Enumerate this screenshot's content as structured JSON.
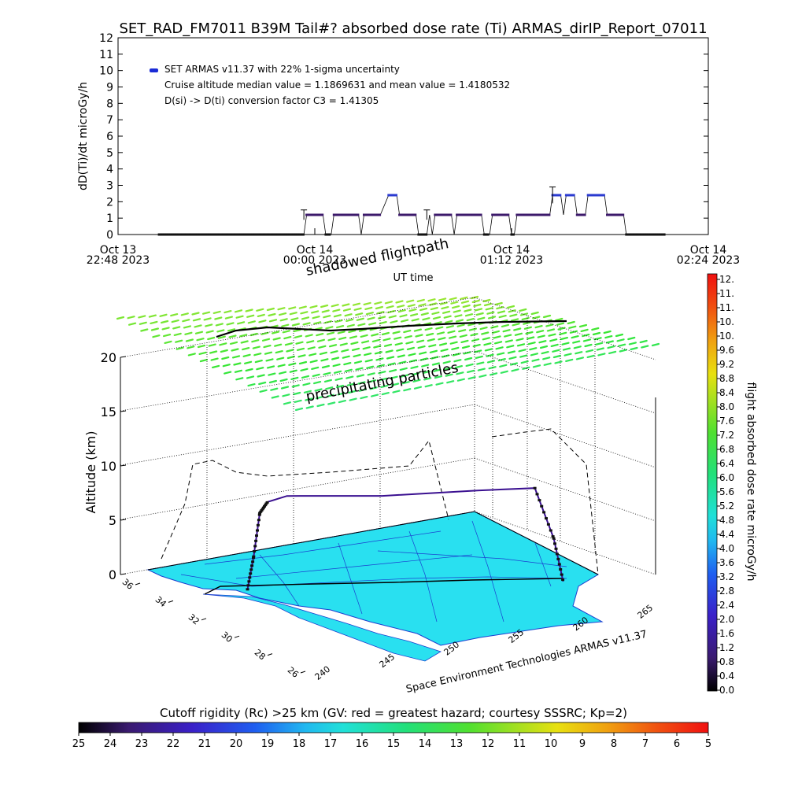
{
  "title": "SET_RAD_FM7011  B39M Tail#? absorbed dose rate (Ti) ARMAS_dirIP_Report_07011",
  "chart_data": [
    {
      "type": "line",
      "ylabel": "dD(Ti)/dt microGy/h",
      "xlabel": "UT time",
      "ylim": [
        0,
        12
      ],
      "yticks": [
        "0",
        "1",
        "2",
        "3",
        "4",
        "5",
        "6",
        "7",
        "8",
        "9",
        "10",
        "11",
        "12"
      ],
      "xticks": [
        {
          "line1": "Oct 13",
          "line2": "22:48 2023",
          "t": 0
        },
        {
          "line1": "Oct 14",
          "line2": "00:00 2023",
          "t": 72
        },
        {
          "line1": "Oct 14",
          "line2": "01:12 2023",
          "t": 144
        },
        {
          "line1": "Oct 14",
          "line2": "02:24 2023",
          "t": 216
        }
      ],
      "x_unit": "minutes after Oct 13 22:48 2023",
      "legend": {
        "placement": "top-left",
        "series_label": "SET ARMAS v11.37 with 22% 1-sigma uncertainty",
        "note1": "Cruise altitude median value = 1.1869631 and mean value = 1.4180532",
        "note2": "D(si) -> D(ti) conversion factor C3 = 1.41305"
      },
      "series": [
        {
          "points": [
            [
              15,
              0
            ],
            [
              20,
              0
            ],
            [
              25,
              0
            ],
            [
              30,
              0
            ],
            [
              35,
              0
            ],
            [
              40,
              0
            ],
            [
              45,
              0
            ],
            [
              50,
              0
            ],
            [
              55,
              0
            ],
            [
              60,
              0
            ],
            [
              65,
              0
            ],
            [
              68,
              0
            ],
            [
              69,
              1.2
            ],
            [
              72,
              1.2
            ],
            [
              75,
              1.2
            ],
            [
              76,
              0
            ],
            [
              78,
              0
            ],
            [
              79,
              1.2
            ],
            [
              82,
              1.2
            ],
            [
              85,
              1.2
            ],
            [
              88,
              1.2
            ],
            [
              89,
              0
            ],
            [
              90,
              1.2
            ],
            [
              93,
              1.2
            ],
            [
              96,
              1.2
            ],
            [
              99,
              2.4
            ],
            [
              102,
              2.4
            ],
            [
              103,
              1.2
            ],
            [
              106,
              1.2
            ],
            [
              109,
              1.2
            ],
            [
              110,
              0
            ],
            [
              113,
              0
            ],
            [
              114,
              1.2
            ],
            [
              115,
              0
            ],
            [
              116,
              1.2
            ],
            [
              119,
              1.2
            ],
            [
              122,
              1.2
            ],
            [
              123,
              0
            ],
            [
              124,
              1.2
            ],
            [
              127,
              1.2
            ],
            [
              130,
              1.2
            ],
            [
              133,
              1.2
            ],
            [
              134,
              0
            ],
            [
              136,
              0
            ],
            [
              137,
              1.2
            ],
            [
              140,
              1.2
            ],
            [
              143,
              1.2
            ],
            [
              144,
              0
            ],
            [
              145,
              0
            ],
            [
              146,
              1.2
            ],
            [
              149,
              1.2
            ],
            [
              152,
              1.2
            ],
            [
              155,
              1.2
            ],
            [
              158,
              1.2
            ],
            [
              159,
              2.4
            ],
            [
              162,
              2.4
            ],
            [
              163,
              1.2
            ],
            [
              164,
              2.4
            ],
            [
              167,
              2.4
            ],
            [
              168,
              1.2
            ],
            [
              171,
              1.2
            ],
            [
              172,
              2.4
            ],
            [
              175,
              2.4
            ],
            [
              178,
              2.4
            ],
            [
              179,
              1.2
            ],
            [
              182,
              1.2
            ],
            [
              185,
              1.2
            ],
            [
              186,
              0
            ],
            [
              190,
              0
            ],
            [
              195,
              0
            ],
            [
              200,
              0
            ]
          ],
          "errorbars": [
            [
              68,
              1.2,
              0.3
            ],
            [
              113,
              1.2,
              0.3
            ],
            [
              159,
              2.4,
              0.5
            ]
          ]
        }
      ]
    },
    {
      "type": "scatter",
      "chart_kind": "3d flight path over map",
      "zlabel": "Altitude (km)",
      "zticks": [
        "0",
        "5",
        "10",
        "15",
        "20"
      ],
      "zlim": [
        0,
        20
      ],
      "lat_ticks": [
        "36",
        "34",
        "32",
        "30",
        "28",
        "26"
      ],
      "lon_ticks": [
        "240",
        "245",
        "250",
        "255",
        "260",
        "265"
      ],
      "annotation_shadow": "shadowed flightpath",
      "annotation_precip": "precipitating particles",
      "credit": "Space Environment Technologies ARMAS v11.37",
      "path": [
        {
          "lon": 248,
          "lat": 33.5,
          "alt_km": 0
        },
        {
          "lon": 248.3,
          "lat": 33.7,
          "alt_km": 3
        },
        {
          "lon": 248.6,
          "lat": 33.9,
          "alt_km": 7
        },
        {
          "lon": 249,
          "lat": 34,
          "alt_km": 8
        },
        {
          "lon": 250,
          "lat": 34.2,
          "alt_km": 8.5
        },
        {
          "lon": 255,
          "lat": 34.6,
          "alt_km": 8.3
        },
        {
          "lon": 260,
          "lat": 35,
          "alt_km": 8.6
        },
        {
          "lon": 263,
          "lat": 35.2,
          "alt_km": 8.7
        },
        {
          "lon": 264,
          "lat": 35.2,
          "alt_km": 4
        },
        {
          "lon": 264.5,
          "lat": 35.2,
          "alt_km": 0
        }
      ],
      "precip_layer_alt_km": 22
    }
  ],
  "colorbar_right": {
    "label": "flight absorbed dose rate microGy/h",
    "ticks": [
      "12.",
      "11.",
      "11.",
      "10.",
      "10.",
      "9.6",
      "9.2",
      "8.8",
      "8.4",
      "8.0",
      "7.6",
      "7.2",
      "6.8",
      "6.4",
      "6.0",
      "5.6",
      "5.2",
      "4.8",
      "4.4",
      "4.0",
      "3.6",
      "3.2",
      "2.8",
      "2.4",
      "2.0",
      "1.6",
      "1.2",
      "0.8",
      "0.4",
      "0.0"
    ]
  },
  "colorbar_bottom": {
    "label": "Cutoff rigidity (Rc) >25 km (GV: red = greatest hazard; courtesy SSSRC; Kp=2)",
    "ticks": [
      "25",
      "24",
      "23",
      "22",
      "21",
      "20",
      "19",
      "18",
      "17",
      "16",
      "15",
      "14",
      "13",
      "12",
      "11",
      "10",
      "9",
      "8",
      "7",
      "6",
      "5"
    ]
  },
  "colors": {
    "trace": "#3d1a6b",
    "legend_dot": "#1a2bd6",
    "map_fill": "#29e0f0",
    "map_edge": "#1a3fd0",
    "flight_path": "#3a1090"
  }
}
